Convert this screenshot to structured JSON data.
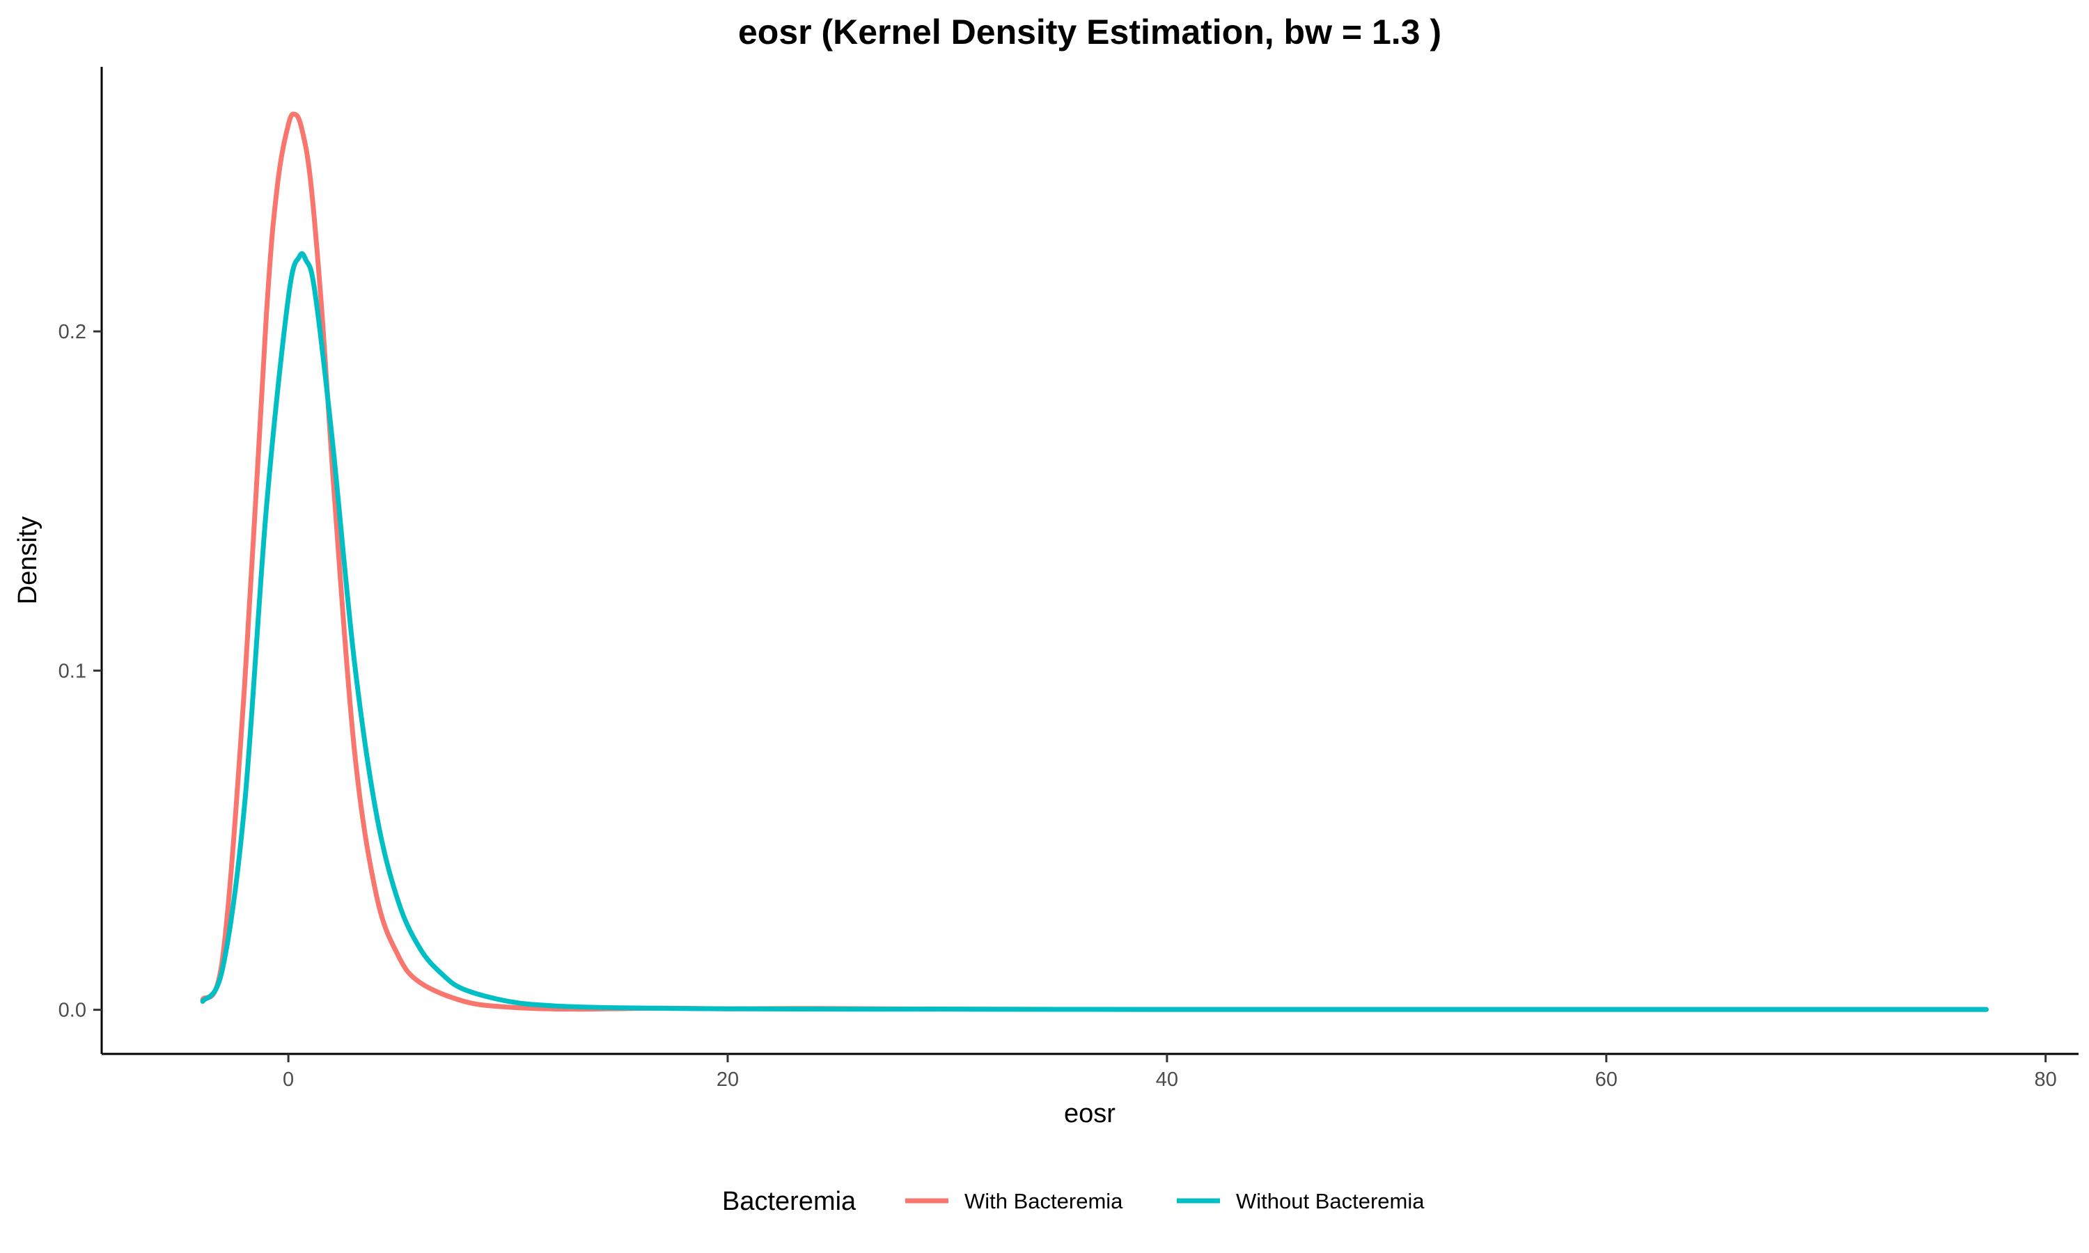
{
  "chart_data": {
    "type": "line",
    "title": "eosr (Kernel Density Estimation, bw = 1.3 )",
    "xlabel": "eosr",
    "ylabel": "Density",
    "xlim": [
      -8.5,
      81.5
    ],
    "ylim": [
      -0.013,
      0.278
    ],
    "x_ticks": [
      0,
      20,
      40,
      60,
      80
    ],
    "y_ticks": [
      0.0,
      0.1,
      0.2
    ],
    "x_tick_labels": [
      "0",
      "20",
      "40",
      "60",
      "80"
    ],
    "y_tick_labels": [
      "0.0",
      "0.1",
      "0.2"
    ],
    "grid": false,
    "legend": {
      "title": "Bacteremia",
      "position": "bottom",
      "entries": [
        "With Bacteremia",
        "Without Bacteremia"
      ]
    },
    "series": [
      {
        "name": "With Bacteremia",
        "color": "#F8766D",
        "x": [
          -3.9,
          -3,
          -2,
          -1,
          -0.5,
          0,
          0.3,
          0.6,
          1,
          1.5,
          2,
          3,
          4,
          5,
          6,
          8,
          10,
          13,
          17,
          20,
          24,
          30,
          40,
          50,
          60,
          70,
          77.3
        ],
        "y": [
          0.003,
          0.015,
          0.095,
          0.205,
          0.243,
          0.261,
          0.264,
          0.26,
          0.245,
          0.208,
          0.16,
          0.077,
          0.034,
          0.016,
          0.008,
          0.0025,
          0.0008,
          0.0002,
          0.0005,
          0.0003,
          0.0004,
          0.0002,
          0.0001,
          0.0001,
          0.0001,
          0.0001,
          0.0001
        ]
      },
      {
        "name": "Without Bacteremia",
        "color": "#00BFC4",
        "x": [
          -3.9,
          -3,
          -2,
          -1,
          0,
          0.5,
          0.8,
          1.2,
          2,
          3,
          4,
          5,
          6,
          7,
          8,
          10,
          12,
          15,
          20,
          25,
          30,
          40,
          50,
          60,
          70,
          77.3
        ],
        "y": [
          0.0025,
          0.012,
          0.06,
          0.148,
          0.21,
          0.222,
          0.221,
          0.212,
          0.168,
          0.103,
          0.058,
          0.032,
          0.018,
          0.0105,
          0.006,
          0.0025,
          0.0012,
          0.0006,
          0.0003,
          0.0002,
          0.0002,
          0.0001,
          0.0001,
          0.0001,
          0.0001,
          0.0001
        ]
      }
    ]
  }
}
